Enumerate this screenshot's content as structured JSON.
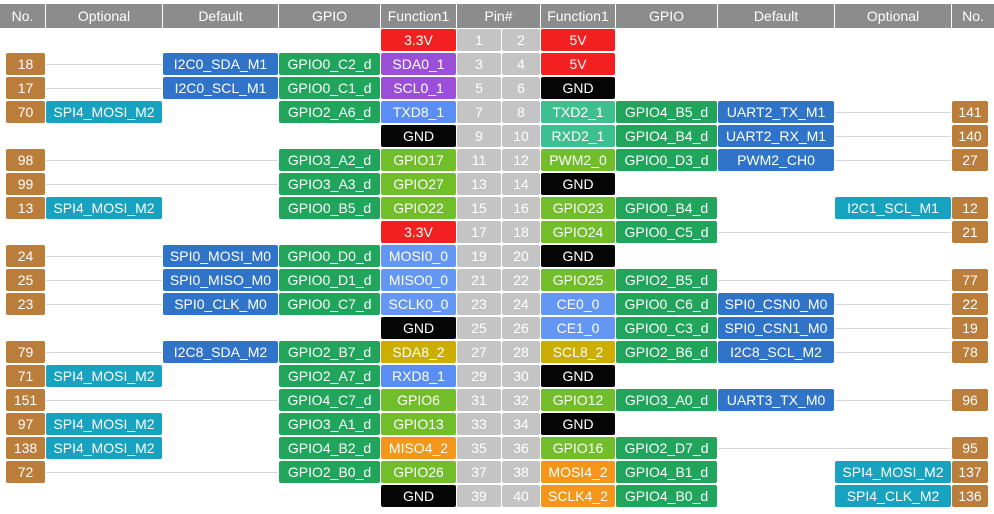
{
  "headers": [
    "No.",
    "Optional",
    "Default",
    "GPIO",
    "Function1",
    "Pin#",
    "Function1",
    "GPIO",
    "Default",
    "Optional",
    "No."
  ],
  "colors": {
    "header": "#8c8c8c",
    "number": "#bb7d3a",
    "optional": "#17a2bf",
    "default": "#2f74c8",
    "gpio": "#21a45c",
    "pin": "#c4c4c4",
    "power": "#f22020",
    "ground": "#050505",
    "i2c0": "#9b4fd8",
    "uart": "#5b8ef5",
    "uart_rx": "#3cc08f",
    "gpio_fn": "#72bd2a",
    "spi": "#6497f4",
    "i2c8": "#ccae00",
    "spi4": "#f3961a"
  },
  "rows": [
    {
      "l_fn": {
        "text": "3.3V",
        "color": "power"
      },
      "l_pin": "1",
      "r_pin": "2",
      "r_fn": {
        "text": "5V",
        "color": "power"
      }
    },
    {
      "l_no": "18",
      "l_def": "I2C0_SDA_M1",
      "l_gpio": "GPIO0_C2_d",
      "l_fn": {
        "text": "SDA0_1",
        "color": "i2c0"
      },
      "l_pin": "3",
      "r_pin": "4",
      "r_fn": {
        "text": "5V",
        "color": "power"
      }
    },
    {
      "l_no": "17",
      "l_def": "I2C0_SCL_M1",
      "l_gpio": "GPIO0_C1_d",
      "l_fn": {
        "text": "SCL0_1",
        "color": "i2c0"
      },
      "l_pin": "5",
      "r_pin": "6",
      "r_fn": {
        "text": "GND",
        "color": "ground"
      }
    },
    {
      "l_no": "70",
      "l_opt": "SPI4_MOSI_M2",
      "l_gpio": "GPIO2_A6_d",
      "l_fn": {
        "text": "TXD8_1",
        "color": "uart"
      },
      "l_pin": "7",
      "r_pin": "8",
      "r_fn": {
        "text": "TXD2_1",
        "color": "uart_rx"
      },
      "r_gpio": "GPIO4_B5_d",
      "r_def": "UART2_TX_M1",
      "r_no": "141"
    },
    {
      "l_fn": {
        "text": "GND",
        "color": "ground"
      },
      "l_pin": "9",
      "r_pin": "10",
      "r_fn": {
        "text": "RXD2_1",
        "color": "uart_rx"
      },
      "r_gpio": "GPIO4_B4_d",
      "r_def": "UART2_RX_M1",
      "r_no": "140"
    },
    {
      "l_no": "98",
      "l_gpio": "GPIO3_A2_d",
      "l_fn": {
        "text": "GPIO17",
        "color": "gpio_fn"
      },
      "l_pin": "11",
      "r_pin": "12",
      "r_fn": {
        "text": "PWM2_0",
        "color": "gpio_fn"
      },
      "r_gpio": "GPIO0_D3_d",
      "r_def": "PWM2_CH0",
      "r_no": "27"
    },
    {
      "l_no": "99",
      "l_gpio": "GPIO3_A3_d",
      "l_fn": {
        "text": "GPIO27",
        "color": "gpio_fn"
      },
      "l_pin": "13",
      "r_pin": "14",
      "r_fn": {
        "text": "GND",
        "color": "ground"
      }
    },
    {
      "l_no": "13",
      "l_opt": "SPI4_MOSI_M2",
      "l_gpio": "GPIO0_B5_d",
      "l_fn": {
        "text": "GPIO22",
        "color": "gpio_fn"
      },
      "l_pin": "15",
      "r_pin": "16",
      "r_fn": {
        "text": "GPIO23",
        "color": "gpio_fn"
      },
      "r_gpio": "GPIO0_B4_d",
      "r_opt": "I2C1_SCL_M1",
      "r_no": "12"
    },
    {
      "l_fn": {
        "text": "3.3V",
        "color": "power"
      },
      "l_pin": "17",
      "r_pin": "18",
      "r_fn": {
        "text": "GPIO24",
        "color": "gpio_fn"
      },
      "r_gpio": "GPIO0_C5_d",
      "r_no": "21"
    },
    {
      "l_no": "24",
      "l_def": "SPI0_MOSI_M0",
      "l_gpio": "GPIO0_D0_d",
      "l_fn": {
        "text": "MOSI0_0",
        "color": "spi"
      },
      "l_pin": "19",
      "r_pin": "20",
      "r_fn": {
        "text": "GND",
        "color": "ground"
      }
    },
    {
      "l_no": "25",
      "l_def": "SPI0_MISO_M0",
      "l_gpio": "GPIO0_D1_d",
      "l_fn": {
        "text": "MISO0_0",
        "color": "spi"
      },
      "l_pin": "21",
      "r_pin": "22",
      "r_fn": {
        "text": "GPIO25",
        "color": "gpio_fn"
      },
      "r_gpio": "GPIO2_B5_d",
      "r_no": "77"
    },
    {
      "l_no": "23",
      "l_def": "SPI0_CLK_M0",
      "l_gpio": "GPIO0_C7_d",
      "l_fn": {
        "text": "SCLK0_0",
        "color": "spi"
      },
      "l_pin": "23",
      "r_pin": "24",
      "r_fn": {
        "text": "CE0_0",
        "color": "spi"
      },
      "r_gpio": "GPIO0_C6_d",
      "r_def": "SPI0_CSN0_M0",
      "r_no": "22"
    },
    {
      "l_fn": {
        "text": "GND",
        "color": "ground"
      },
      "l_pin": "25",
      "r_pin": "26",
      "r_fn": {
        "text": "CE1_0",
        "color": "spi"
      },
      "r_gpio": "GPIO0_C3_d",
      "r_def": "SPI0_CSN1_M0",
      "r_no": "19"
    },
    {
      "l_no": "79",
      "l_def": "I2C8_SDA_M2",
      "l_gpio": "GPIO2_B7_d",
      "l_fn": {
        "text": "SDA8_2",
        "color": "i2c8"
      },
      "l_pin": "27",
      "r_pin": "28",
      "r_fn": {
        "text": "SCL8_2",
        "color": "i2c8"
      },
      "r_gpio": "GPIO2_B6_d",
      "r_def": "I2C8_SCL_M2",
      "r_no": "78"
    },
    {
      "l_no": "71",
      "l_opt": "SPI4_MOSI_M2",
      "l_gpio": "GPIO2_A7_d",
      "l_fn": {
        "text": "RXD8_1",
        "color": "uart"
      },
      "l_pin": "29",
      "r_pin": "30",
      "r_fn": {
        "text": "GND",
        "color": "ground"
      }
    },
    {
      "l_no": "151",
      "l_gpio": "GPIO4_C7_d",
      "l_fn": {
        "text": "GPIO6",
        "color": "gpio_fn"
      },
      "l_pin": "31",
      "r_pin": "32",
      "r_fn": {
        "text": "GPIO12",
        "color": "gpio_fn"
      },
      "r_gpio": "GPIO3_A0_d",
      "r_def": "UART3_TX_M0",
      "r_no": "96"
    },
    {
      "l_no": "97",
      "l_opt": "SPI4_MOSI_M2",
      "l_gpio": "GPIO3_A1_d",
      "l_fn": {
        "text": "GPIO13",
        "color": "gpio_fn"
      },
      "l_pin": "33",
      "r_pin": "34",
      "r_fn": {
        "text": "GND",
        "color": "ground"
      }
    },
    {
      "l_no": "138",
      "l_opt": "SPI4_MOSI_M2",
      "l_gpio": "GPIO4_B2_d",
      "l_fn": {
        "text": "MISO4_2",
        "color": "spi4"
      },
      "l_pin": "35",
      "r_pin": "36",
      "r_fn": {
        "text": "GPIO16",
        "color": "gpio_fn"
      },
      "r_gpio": "GPIO2_D7_d",
      "r_no": "95"
    },
    {
      "l_no": "72",
      "l_gpio": "GPIO2_B0_d",
      "l_fn": {
        "text": "GPIO26",
        "color": "gpio_fn"
      },
      "l_pin": "37",
      "r_pin": "38",
      "r_fn": {
        "text": "MOSI4_2",
        "color": "spi4"
      },
      "r_gpio": "GPIO4_B1_d",
      "r_opt": "SPI4_MOSI_M2",
      "r_no": "137"
    },
    {
      "l_fn": {
        "text": "GND",
        "color": "ground"
      },
      "l_pin": "39",
      "r_pin": "40",
      "r_fn": {
        "text": "SCLK4_2",
        "color": "spi4"
      },
      "r_gpio": "GPIO4_B0_d",
      "r_opt": "SPI4_CLK_M2",
      "r_no": "136"
    }
  ]
}
